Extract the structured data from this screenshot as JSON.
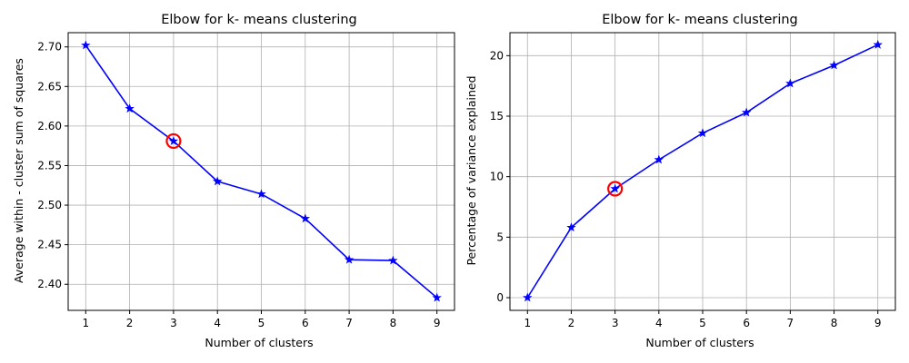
{
  "chart_data": [
    {
      "type": "line",
      "title": "Elbow for k- means clustering",
      "xlabel": "Number of clusters",
      "ylabel": "Average within - cluster sum of squares",
      "x": [
        1,
        2,
        3,
        4,
        5,
        6,
        7,
        8,
        9
      ],
      "xticks": [
        1,
        2,
        3,
        4,
        5,
        6,
        7,
        8,
        9
      ],
      "yticks": [
        2.4,
        2.45,
        2.5,
        2.55,
        2.6,
        2.65,
        2.7
      ],
      "ytick_decimals": 2,
      "xlim": [
        0.6,
        9.4
      ],
      "ylim": [
        2.367,
        2.718
      ],
      "grid": true,
      "series": [
        {
          "values": [
            2.702,
            2.622,
            2.581,
            2.53,
            2.514,
            2.483,
            2.431,
            2.43,
            2.383
          ],
          "color": "#0000ff",
          "marker": "star"
        }
      ],
      "highlight": {
        "x": 3,
        "y": 2.581,
        "color": "#ff0000"
      }
    },
    {
      "type": "line",
      "title": "Elbow for k- means clustering",
      "xlabel": "Number of clusters",
      "ylabel": "Percentage of variance explained",
      "x": [
        1,
        2,
        3,
        4,
        5,
        6,
        7,
        8,
        9
      ],
      "xticks": [
        1,
        2,
        3,
        4,
        5,
        6,
        7,
        8,
        9
      ],
      "yticks": [
        0,
        5,
        10,
        15,
        20
      ],
      "ytick_decimals": 0,
      "xlim": [
        0.6,
        9.4
      ],
      "ylim": [
        -1.05,
        21.9
      ],
      "grid": true,
      "series": [
        {
          "values": [
            0.0,
            5.8,
            9.0,
            11.4,
            13.6,
            15.3,
            17.7,
            19.2,
            20.9
          ],
          "color": "#0000ff",
          "marker": "star"
        }
      ],
      "highlight": {
        "x": 3,
        "y": 9.0,
        "color": "#ff0000"
      }
    }
  ]
}
